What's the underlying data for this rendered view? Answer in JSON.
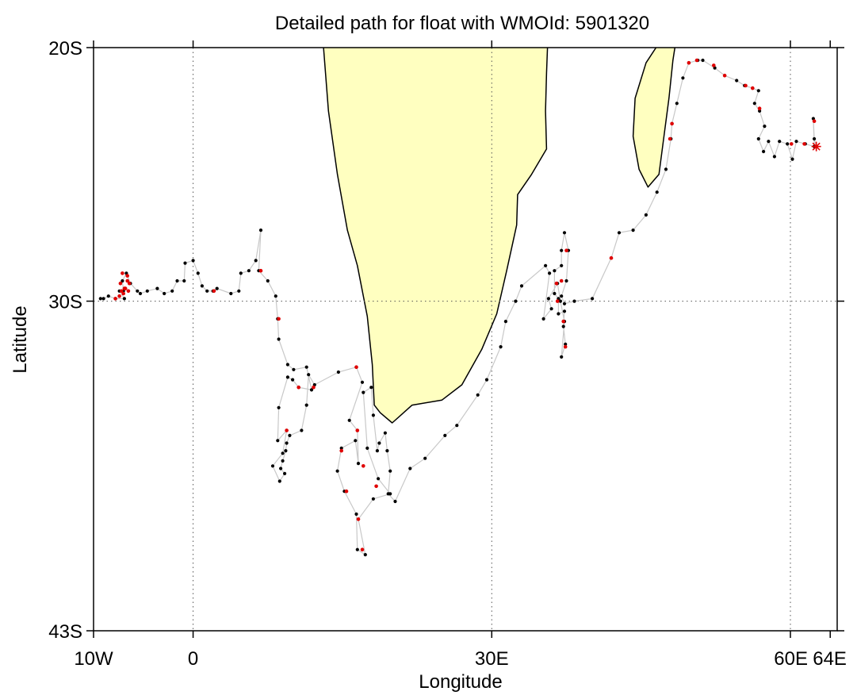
{
  "chart_data": {
    "type": "scatter",
    "title": "Detailed path for float with WMOId: 5901320",
    "xlabel": "Longitude",
    "ylabel": "Latitude",
    "xlim": [
      -10,
      64
    ],
    "ylim": [
      -43,
      -20
    ],
    "x_ticks": [
      {
        "value": -10,
        "label": "10W"
      },
      {
        "value": 0,
        "label": "0"
      },
      {
        "value": 30,
        "label": "30E"
      },
      {
        "value": 60,
        "label": "60E"
      },
      {
        "value": 64,
        "label": "64E"
      }
    ],
    "y_ticks": [
      {
        "value": -20,
        "label": "20S"
      },
      {
        "value": -30,
        "label": "30S"
      },
      {
        "value": -43,
        "label": "43S"
      }
    ],
    "gridlines": {
      "x": [
        0,
        30,
        60
      ],
      "y": [
        -30
      ],
      "style": "dotted"
    },
    "colors": {
      "land": "#ffffc0",
      "path_line": "#c8c8c8",
      "profile_point": "#000000",
      "highlight_point": "#e00000",
      "start_marker": "#e00000"
    },
    "land": [
      {
        "name": "Africa",
        "outline": [
          [
            13.1,
            -20
          ],
          [
            13.6,
            -22.5
          ],
          [
            14.5,
            -25
          ],
          [
            15.5,
            -27.2
          ],
          [
            16.5,
            -28.6
          ],
          [
            17.5,
            -30.6
          ],
          [
            18,
            -32.5
          ],
          [
            18.2,
            -34.1
          ],
          [
            18.8,
            -34.4
          ],
          [
            20,
            -34.8
          ],
          [
            22,
            -34.1
          ],
          [
            25,
            -33.9
          ],
          [
            27,
            -33.3
          ],
          [
            29,
            -31.9
          ],
          [
            30.5,
            -30.5
          ],
          [
            31.5,
            -28.8
          ],
          [
            32.5,
            -27
          ],
          [
            32.6,
            -25.8
          ],
          [
            34,
            -25
          ],
          [
            35.5,
            -24
          ],
          [
            35.4,
            -22.5
          ],
          [
            35.5,
            -21
          ],
          [
            35.6,
            -20
          ]
        ]
      },
      {
        "name": "Madagascar",
        "outline": [
          [
            46.5,
            -20
          ],
          [
            45.5,
            -20.6
          ],
          [
            44.4,
            -22
          ],
          [
            44.2,
            -23.5
          ],
          [
            44.8,
            -24.8
          ],
          [
            45.7,
            -25.5
          ],
          [
            46.8,
            -25
          ],
          [
            47.3,
            -23.5
          ],
          [
            47.8,
            -22
          ],
          [
            48.2,
            -20.5
          ],
          [
            48.4,
            -20
          ]
        ]
      }
    ],
    "start_marker": {
      "lon": 62.6,
      "lat": -23.9,
      "shape": "asterisk"
    },
    "path": [
      [
        62.6,
        -23.9
      ],
      [
        62.4,
        -23.6
      ],
      [
        62.3,
        -22.8
      ],
      [
        62.4,
        -23.9
      ],
      [
        61.5,
        -23.8
      ],
      [
        60.6,
        -23.7
      ],
      [
        60.2,
        -24.4
      ],
      [
        59.7,
        -23.8
      ],
      [
        58.9,
        -23.7
      ],
      [
        58.4,
        -24.3
      ],
      [
        57.8,
        -23.7
      ],
      [
        57.3,
        -24.1
      ],
      [
        56.8,
        -23.6
      ],
      [
        57.4,
        -23.1
      ],
      [
        56.9,
        -22.5
      ],
      [
        56.4,
        -22.2
      ],
      [
        56.8,
        -21.7
      ],
      [
        56.2,
        -21.6
      ],
      [
        55.4,
        -21.5
      ],
      [
        54.6,
        -21.3
      ],
      [
        53.4,
        -21.1
      ],
      [
        52.4,
        -20.8
      ],
      [
        51.2,
        -20.5
      ],
      [
        50.7,
        -20.5
      ],
      [
        49.8,
        -20.6
      ],
      [
        49.2,
        -21.2
      ],
      [
        48.6,
        -22.2
      ],
      [
        48.1,
        -23.0
      ],
      [
        48.0,
        -23.6
      ],
      [
        47.5,
        -24.8
      ],
      [
        46.6,
        -25.7
      ],
      [
        45.5,
        -26.6
      ],
      [
        44.2,
        -27.2
      ],
      [
        42.8,
        -27.3
      ],
      [
        42.0,
        -28.3
      ],
      [
        40.1,
        -29.9
      ],
      [
        38.3,
        -30.0
      ],
      [
        37.3,
        -30.1
      ],
      [
        37.0,
        -29.8
      ],
      [
        37.5,
        -29.2
      ],
      [
        37.7,
        -28.0
      ],
      [
        37.3,
        -27.3
      ],
      [
        37.0,
        -28.0
      ],
      [
        37.0,
        -28.6
      ],
      [
        36.3,
        -28.8
      ],
      [
        36.3,
        -29.7
      ],
      [
        36.7,
        -29.9
      ],
      [
        36.7,
        -30.5
      ],
      [
        37.3,
        -30.4
      ],
      [
        37.2,
        -31.0
      ],
      [
        37.4,
        -31.7
      ],
      [
        37.0,
        -32.2
      ],
      [
        37.3,
        -30.8
      ],
      [
        36.9,
        -30.0
      ],
      [
        36.6,
        -29.3
      ],
      [
        35.7,
        -29.9
      ],
      [
        36.0,
        -30.3
      ],
      [
        35.2,
        -30.7
      ],
      [
        35.8,
        -28.9
      ],
      [
        35.4,
        -28.6
      ],
      [
        33.0,
        -29.4
      ],
      [
        32.4,
        -30.0
      ],
      [
        31.4,
        -30.8
      ],
      [
        30.9,
        -31.8
      ],
      [
        29.5,
        -33.1
      ],
      [
        28.6,
        -33.7
      ],
      [
        26.5,
        -34.9
      ],
      [
        25.3,
        -35.3
      ],
      [
        23.3,
        -36.2
      ],
      [
        21.8,
        -36.6
      ],
      [
        20.3,
        -37.9
      ],
      [
        19.6,
        -37.6
      ],
      [
        19.8,
        -36.7
      ],
      [
        19.5,
        -35.9
      ],
      [
        19.3,
        -35.2
      ],
      [
        18.7,
        -35.6
      ],
      [
        18.5,
        -35.9
      ],
      [
        18.1,
        -34.5
      ],
      [
        17.9,
        -33.4
      ],
      [
        17.1,
        -33.6
      ],
      [
        17.5,
        -35.8
      ],
      [
        18.6,
        -37.0
      ],
      [
        19.8,
        -37.6
      ],
      [
        18.1,
        -37.8
      ],
      [
        16.6,
        -38.6
      ],
      [
        17.3,
        -40.0
      ],
      [
        16.5,
        -39.8
      ],
      [
        16.4,
        -38.4
      ],
      [
        15.2,
        -37.5
      ],
      [
        14.5,
        -36.7
      ],
      [
        14.9,
        -35.8
      ],
      [
        16.3,
        -35.5
      ],
      [
        16.6,
        -36.4
      ],
      [
        16.5,
        -35.1
      ],
      [
        15.7,
        -34.7
      ],
      [
        17.0,
        -33.2
      ],
      [
        16.4,
        -32.6
      ],
      [
        14.6,
        -32.8
      ],
      [
        12.2,
        -33.3
      ],
      [
        11.6,
        -32.9
      ],
      [
        11.4,
        -34.1
      ],
      [
        10.9,
        -35.1
      ],
      [
        9.7,
        -35.3
      ],
      [
        9.4,
        -35.6
      ],
      [
        9.3,
        -35.9
      ],
      [
        9.0,
        -36.3
      ],
      [
        8.8,
        -36.6
      ],
      [
        9.2,
        -36.8
      ],
      [
        8.7,
        -37.1
      ],
      [
        8.0,
        -36.5
      ],
      [
        9.0,
        -36.0
      ],
      [
        9.4,
        -35.1
      ],
      [
        8.5,
        -35.5
      ],
      [
        8.6,
        -34.2
      ],
      [
        9.5,
        -33.0
      ],
      [
        10.0,
        -33.1
      ],
      [
        10.6,
        -33.4
      ],
      [
        11.9,
        -33.5
      ],
      [
        11.4,
        -32.6
      ],
      [
        10.1,
        -32.7
      ],
      [
        9.5,
        -32.5
      ],
      [
        8.6,
        -31.5
      ],
      [
        8.5,
        -30.7
      ],
      [
        8.3,
        -29.8
      ],
      [
        7.5,
        -29.2
      ],
      [
        6.6,
        -28.8
      ],
      [
        6.8,
        -27.2
      ],
      [
        6.3,
        -28.4
      ],
      [
        5.6,
        -28.8
      ],
      [
        4.8,
        -28.9
      ],
      [
        4.6,
        -29.6
      ],
      [
        3.8,
        -29.7
      ],
      [
        2.4,
        -29.5
      ],
      [
        2.0,
        -29.6
      ],
      [
        1.4,
        -29.6
      ],
      [
        0.9,
        -29.4
      ],
      [
        0.5,
        -28.9
      ],
      [
        0.0,
        -28.4
      ],
      [
        -0.8,
        -28.5
      ],
      [
        -0.9,
        -29.2
      ],
      [
        -1.6,
        -29.2
      ],
      [
        -2.1,
        -29.6
      ],
      [
        -2.9,
        -29.7
      ],
      [
        -3.6,
        -29.5
      ],
      [
        -4.6,
        -29.6
      ],
      [
        -5.3,
        -29.7
      ],
      [
        -5.6,
        -29.6
      ],
      [
        -6.3,
        -29.3
      ],
      [
        -6.7,
        -28.9
      ],
      [
        -7.1,
        -29.2
      ],
      [
        -7.0,
        -29.6
      ],
      [
        -7.4,
        -29.6
      ],
      [
        -6.9,
        -29.9
      ],
      [
        -7.8,
        -29.9
      ],
      [
        -8.5,
        -29.8
      ],
      [
        -9.0,
        -29.9
      ],
      [
        -9.3,
        -29.9
      ]
    ],
    "highlight_points": [
      [
        62.4,
        -22.9
      ],
      [
        61.4,
        -23.8
      ],
      [
        60.1,
        -23.8
      ],
      [
        56.9,
        -22.4
      ],
      [
        56.2,
        -21.6
      ],
      [
        55.5,
        -21.5
      ],
      [
        53.4,
        -21.1
      ],
      [
        52.3,
        -20.7
      ],
      [
        50.6,
        -20.5
      ],
      [
        49.8,
        -20.6
      ],
      [
        48.1,
        -23.0
      ],
      [
        47.9,
        -23.6
      ],
      [
        42.0,
        -28.3
      ],
      [
        37.5,
        -28.0
      ],
      [
        37.0,
        -29.2
      ],
      [
        36.5,
        -29.3
      ],
      [
        36.6,
        -30.0
      ],
      [
        37.2,
        -30.8
      ],
      [
        37.4,
        -31.8
      ],
      [
        12.1,
        -33.4
      ],
      [
        10.6,
        -33.4
      ],
      [
        9.4,
        -35.1
      ],
      [
        8.6,
        -30.7
      ],
      [
        6.8,
        -28.8
      ],
      [
        2.1,
        -29.6
      ],
      [
        16.4,
        -32.6
      ],
      [
        14.9,
        -35.9
      ],
      [
        16.5,
        -35.1
      ],
      [
        17.1,
        -36.5
      ],
      [
        15.4,
        -37.5
      ],
      [
        18.4,
        -37.3
      ],
      [
        16.6,
        -38.6
      ],
      [
        17.0,
        -39.8
      ],
      [
        -7.1,
        -28.9
      ],
      [
        -6.6,
        -29.0
      ],
      [
        -6.4,
        -29.3
      ],
      [
        -7.3,
        -29.3
      ],
      [
        -6.8,
        -29.5
      ],
      [
        -7.0,
        -29.7
      ],
      [
        -6.5,
        -29.6
      ],
      [
        -7.4,
        -29.8
      ],
      [
        -7.8,
        -29.9
      ],
      [
        -6.9,
        -29.5
      ],
      [
        -7.2,
        -29.6
      ],
      [
        -6.6,
        -29.2
      ]
    ]
  }
}
